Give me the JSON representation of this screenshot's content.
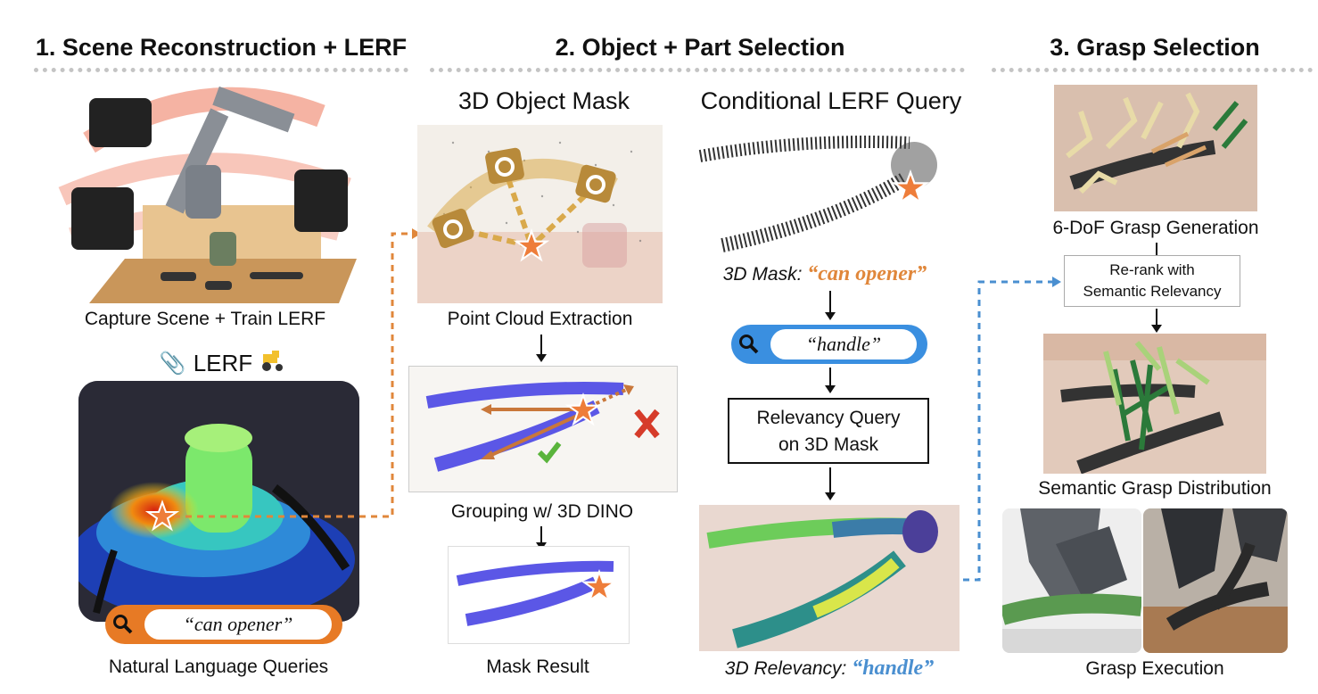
{
  "sections": [
    {
      "title": "1. Scene Reconstruction + LERF"
    },
    {
      "title": "2. Object + Part Selection"
    },
    {
      "title": "3. Grasp Selection"
    }
  ],
  "col1": {
    "capture_caption": "Capture Scene + Train LERF",
    "lerf_label": "LERF",
    "query_text": "“can opener”",
    "queries_caption": "Natural Language Queries"
  },
  "col2": {
    "mask_heading": "3D Object Mask",
    "pc_caption": "Point Cloud Extraction",
    "grouping_caption": "Grouping w/ 3D DINO",
    "mask_result_caption": "Mask Result"
  },
  "col3": {
    "heading": "Conditional LERF Query",
    "mask_prefix": "3D Mask: ",
    "mask_quote": "“can opener”",
    "query_text": "“handle”",
    "relevancy_box_line1": "Relevancy Query",
    "relevancy_box_line2": "on 3D Mask",
    "relevancy_prefix": "3D Relevancy: ",
    "relevancy_quote": "“handle”"
  },
  "col4": {
    "generation_caption": "6-DoF Grasp Generation",
    "rerank_line1": "Re-rank with",
    "rerank_line2": "Semantic Relevancy",
    "distribution_caption": "Semantic Grasp Distribution",
    "execution_caption": "Grasp Execution"
  },
  "colors": {
    "orange": "#e0873b",
    "blue": "#4a8fd0",
    "star": "#ee7d3a",
    "search_orange": "#e77a25",
    "search_blue": "#3a8fe0"
  }
}
